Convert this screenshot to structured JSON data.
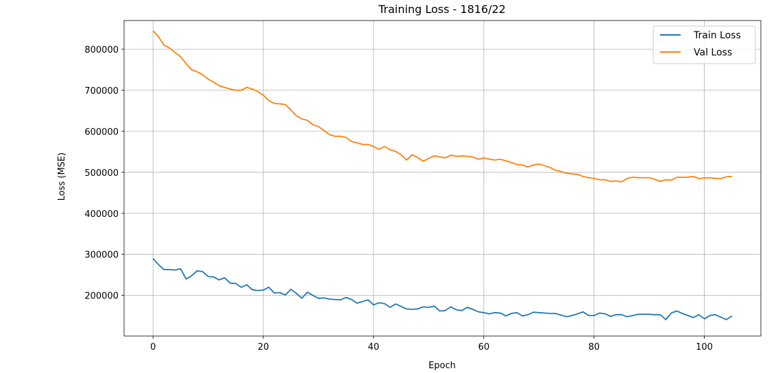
{
  "chart_data": {
    "type": "line",
    "title": "Training Loss - 1816/22",
    "xlabel": "Epoch",
    "ylabel": "Loss (MSE)",
    "xlim": [
      -5.25,
      110.25
    ],
    "ylim": [
      101000,
      870000
    ],
    "xticks": [
      0,
      20,
      40,
      60,
      80,
      100
    ],
    "yticks": [
      200000,
      300000,
      400000,
      500000,
      600000,
      700000,
      800000
    ],
    "grid": true,
    "legend_position": "top-right",
    "series": [
      {
        "name": "Train Loss",
        "color": "#1f77b4",
        "x": [
          0,
          1,
          2,
          3,
          4,
          5,
          6,
          7,
          8,
          9,
          10,
          11,
          12,
          13,
          14,
          15,
          16,
          17,
          18,
          19,
          20,
          21,
          22,
          23,
          24,
          25,
          26,
          27,
          28,
          29,
          30,
          31,
          32,
          33,
          34,
          35,
          36,
          37,
          38,
          39,
          40,
          41,
          42,
          43,
          44,
          45,
          46,
          47,
          48,
          49,
          50,
          51,
          52,
          53,
          54,
          55,
          56,
          57,
          58,
          59,
          60,
          61,
          62,
          63,
          64,
          65,
          66,
          67,
          68,
          69,
          70,
          71,
          72,
          73,
          74,
          75,
          76,
          77,
          78,
          79,
          80,
          81,
          82,
          83,
          84,
          85,
          86,
          87,
          88,
          89,
          90,
          91,
          92,
          93,
          94,
          95,
          96,
          97,
          98,
          99,
          100,
          101,
          102,
          103,
          104,
          105
        ],
        "values": [
          290000,
          275000,
          263000,
          263000,
          262000,
          265000,
          240000,
          248000,
          260000,
          258000,
          246000,
          245000,
          238000,
          243000,
          230000,
          229000,
          220000,
          226000,
          214000,
          212000,
          213000,
          220000,
          206000,
          207000,
          201000,
          215000,
          205000,
          193000,
          208000,
          200000,
          193000,
          194000,
          191000,
          190000,
          189000,
          195000,
          190000,
          181000,
          185000,
          189000,
          177000,
          182000,
          180000,
          171000,
          179000,
          173000,
          167000,
          166000,
          167000,
          172000,
          171000,
          174000,
          162000,
          163000,
          172000,
          165000,
          163000,
          171000,
          166000,
          160000,
          158000,
          155000,
          158000,
          157000,
          150000,
          156000,
          158000,
          150000,
          153000,
          159000,
          158000,
          157000,
          156000,
          156000,
          152000,
          148000,
          151000,
          155000,
          160000,
          151000,
          151000,
          157000,
          155000,
          149000,
          153000,
          153000,
          148000,
          151000,
          154000,
          154000,
          154000,
          153000,
          153000,
          141000,
          157000,
          162000,
          156000,
          151000,
          146000,
          153000,
          143000,
          151000,
          153000,
          147000,
          141000,
          150000
        ]
      },
      {
        "name": "Val Loss",
        "color": "#ff7f0e",
        "x": [
          0,
          1,
          2,
          3,
          4,
          5,
          6,
          7,
          8,
          9,
          10,
          11,
          12,
          13,
          14,
          15,
          16,
          17,
          18,
          19,
          20,
          21,
          22,
          23,
          24,
          25,
          26,
          27,
          28,
          29,
          30,
          31,
          32,
          33,
          34,
          35,
          36,
          37,
          38,
          39,
          40,
          41,
          42,
          43,
          44,
          45,
          46,
          47,
          48,
          49,
          50,
          51,
          52,
          53,
          54,
          55,
          56,
          57,
          58,
          59,
          60,
          61,
          62,
          63,
          64,
          65,
          66,
          67,
          68,
          69,
          70,
          71,
          72,
          73,
          74,
          75,
          76,
          77,
          78,
          79,
          80,
          81,
          82,
          83,
          84,
          85,
          86,
          87,
          88,
          89,
          90,
          91,
          92,
          93,
          94,
          95,
          96,
          97,
          98,
          99,
          100,
          101,
          102,
          103,
          104,
          105
        ],
        "values": [
          845000,
          830000,
          810000,
          803000,
          792000,
          782000,
          765000,
          750000,
          745000,
          738000,
          727000,
          720000,
          711000,
          707000,
          703000,
          700000,
          700000,
          707000,
          703000,
          697000,
          688000,
          675000,
          668000,
          667000,
          665000,
          652000,
          638000,
          630000,
          627000,
          616000,
          612000,
          602000,
          592000,
          588000,
          588000,
          585000,
          575000,
          572000,
          568000,
          568000,
          563000,
          556000,
          563000,
          555000,
          551000,
          543000,
          530000,
          543000,
          536000,
          527000,
          534000,
          540000,
          538000,
          535000,
          542000,
          539000,
          540000,
          539000,
          537000,
          532000,
          535000,
          532000,
          530000,
          532000,
          528000,
          524000,
          519000,
          518000,
          513000,
          518000,
          520000,
          516000,
          512000,
          505000,
          502000,
          498000,
          496000,
          495000,
          490000,
          487000,
          485000,
          482000,
          482000,
          478000,
          479000,
          477000,
          485000,
          488000,
          487000,
          487000,
          487000,
          483000,
          478000,
          482000,
          481000,
          488000,
          488000,
          488000,
          490000,
          485000,
          486000,
          487000,
          485000,
          485000,
          489000,
          490000
        ]
      }
    ]
  }
}
